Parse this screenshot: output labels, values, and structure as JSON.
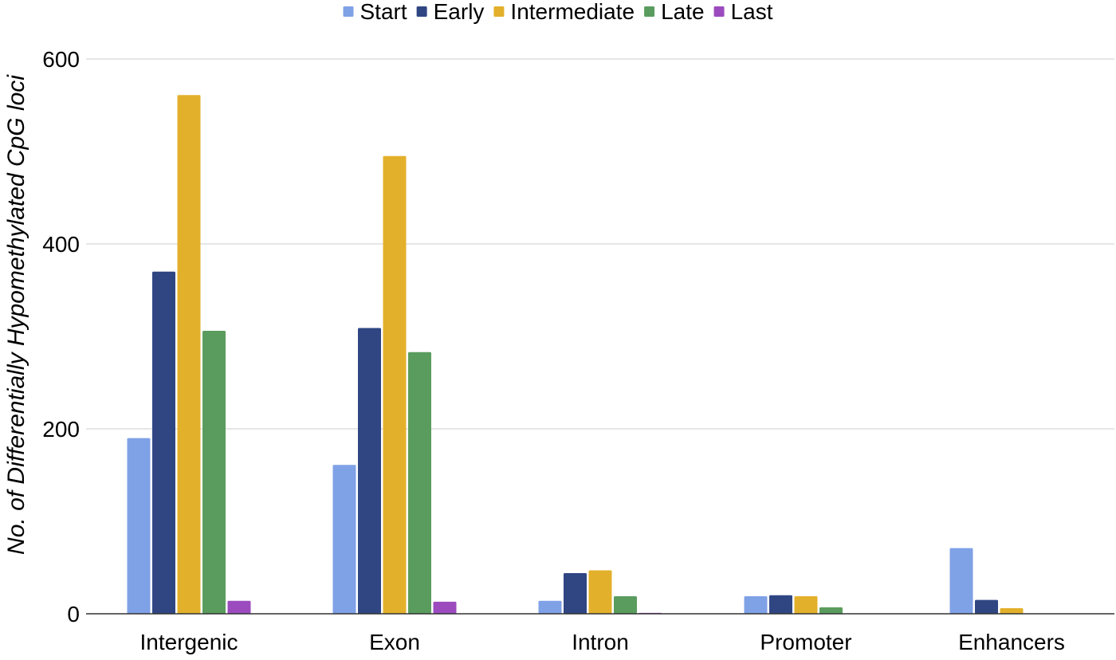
{
  "chart_data": {
    "type": "bar",
    "title": "",
    "xlabel": "",
    "ylabel": "No. of Differentially Hypomethylated CpG loci",
    "ylim": [
      0,
      600
    ],
    "yticks": [
      0,
      200,
      400,
      600
    ],
    "grid": true,
    "legend_position": "top",
    "categories": [
      "Intergenic",
      "Exon",
      "Intron",
      "Promoter",
      "Enhancers"
    ],
    "series": [
      {
        "name": "Start",
        "color": "#7FA1E6",
        "values": [
          190,
          161,
          14,
          19,
          71
        ]
      },
      {
        "name": "Early",
        "color": "#2F4683",
        "values": [
          370,
          309,
          44,
          20,
          15
        ]
      },
      {
        "name": "Intermediate",
        "color": "#E3B02B",
        "values": [
          561,
          495,
          47,
          19,
          6
        ]
      },
      {
        "name": "Late",
        "color": "#5A9C5E",
        "values": [
          306,
          283,
          19,
          7,
          0
        ]
      },
      {
        "name": "Last",
        "color": "#9C4BBF",
        "values": [
          14,
          13,
          1,
          0,
          0
        ]
      }
    ]
  }
}
